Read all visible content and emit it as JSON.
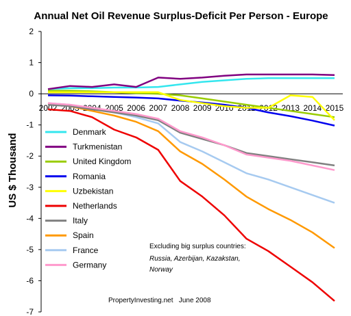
{
  "chart_data": {
    "type": "line",
    "title": "Annual Net Oil Revenue Surplus-Deficit Per Person - Europe",
    "ylabel": "US $ Thousand",
    "xlabel": "",
    "ylim": [
      -7,
      2
    ],
    "yticks": [
      2,
      1,
      0,
      -1,
      -2,
      -3,
      -4,
      -5,
      -6,
      -7
    ],
    "x": [
      "2002",
      "2003",
      "2004",
      "2005",
      "2006",
      "2007",
      "2008",
      "2009",
      "2010",
      "2011",
      "2012",
      "2013",
      "2014",
      "2015"
    ],
    "grid": false,
    "legend_position": "left",
    "series": [
      {
        "name": "Denmark",
        "color": "#33e6ee",
        "values": [
          0.15,
          0.18,
          0.18,
          0.2,
          0.2,
          0.22,
          0.3,
          0.38,
          0.43,
          0.48,
          0.5,
          0.5,
          0.5,
          0.5
        ]
      },
      {
        "name": "Turkmenistan",
        "color": "#800080",
        "values": [
          0.15,
          0.25,
          0.22,
          0.3,
          0.22,
          0.52,
          0.48,
          0.52,
          0.58,
          0.62,
          0.62,
          0.62,
          0.62,
          0.6
        ]
      },
      {
        "name": "United Kingdom",
        "color": "#99cc00",
        "values": [
          0.1,
          0.1,
          0.08,
          0.05,
          0.02,
          0.0,
          -0.05,
          -0.15,
          -0.25,
          -0.35,
          -0.45,
          -0.55,
          -0.65,
          -0.75
        ]
      },
      {
        "name": "Romania",
        "color": "#0000ee",
        "values": [
          -0.05,
          -0.06,
          -0.08,
          -0.1,
          -0.12,
          -0.15,
          -0.22,
          -0.28,
          -0.35,
          -0.45,
          -0.6,
          -0.72,
          -0.86,
          -1.02
        ]
      },
      {
        "name": "Uzbekistan",
        "color": "#ffff00",
        "values": [
          0.05,
          0.05,
          0.05,
          0.05,
          0.05,
          0.05,
          -0.2,
          -0.3,
          -0.4,
          -0.45,
          -0.45,
          -0.05,
          -0.1,
          -0.85
        ]
      },
      {
        "name": "Netherlands",
        "color": "#ee0000",
        "values": [
          -0.5,
          -0.55,
          -0.75,
          -1.15,
          -1.4,
          -1.8,
          -2.8,
          -3.3,
          -3.9,
          -4.65,
          -5.05,
          -5.55,
          -6.05,
          -6.65
        ]
      },
      {
        "name": "Italy",
        "color": "#808080",
        "values": [
          -0.35,
          -0.4,
          -0.5,
          -0.6,
          -0.7,
          -0.85,
          -1.25,
          -1.45,
          -1.65,
          -1.9,
          -2.0,
          -2.1,
          -2.2,
          -2.3
        ]
      },
      {
        "name": "Spain",
        "color": "#ff9900",
        "values": [
          -0.3,
          -0.4,
          -0.55,
          -0.7,
          -0.9,
          -1.2,
          -1.85,
          -2.25,
          -2.75,
          -3.3,
          -3.7,
          -4.05,
          -4.45,
          -4.95
        ]
      },
      {
        "name": "France",
        "color": "#a6caf0",
        "values": [
          -0.3,
          -0.35,
          -0.45,
          -0.6,
          -0.75,
          -0.95,
          -1.55,
          -1.85,
          -2.2,
          -2.55,
          -2.75,
          -3.0,
          -3.25,
          -3.5
        ]
      },
      {
        "name": "Germany",
        "color": "#ff99cc",
        "values": [
          -0.3,
          -0.35,
          -0.45,
          -0.55,
          -0.65,
          -0.8,
          -1.2,
          -1.4,
          -1.65,
          -1.95,
          -2.05,
          -2.15,
          -2.3,
          -2.45
        ]
      }
    ],
    "annotation_lines": [
      "Excluding big surplus countries:"
    ],
    "annotation_italic_lines": [
      "Russia, Azerbijan, Kazakstan,",
      "Norway"
    ],
    "credit": "PropertyInvesting.net   June 2008"
  }
}
